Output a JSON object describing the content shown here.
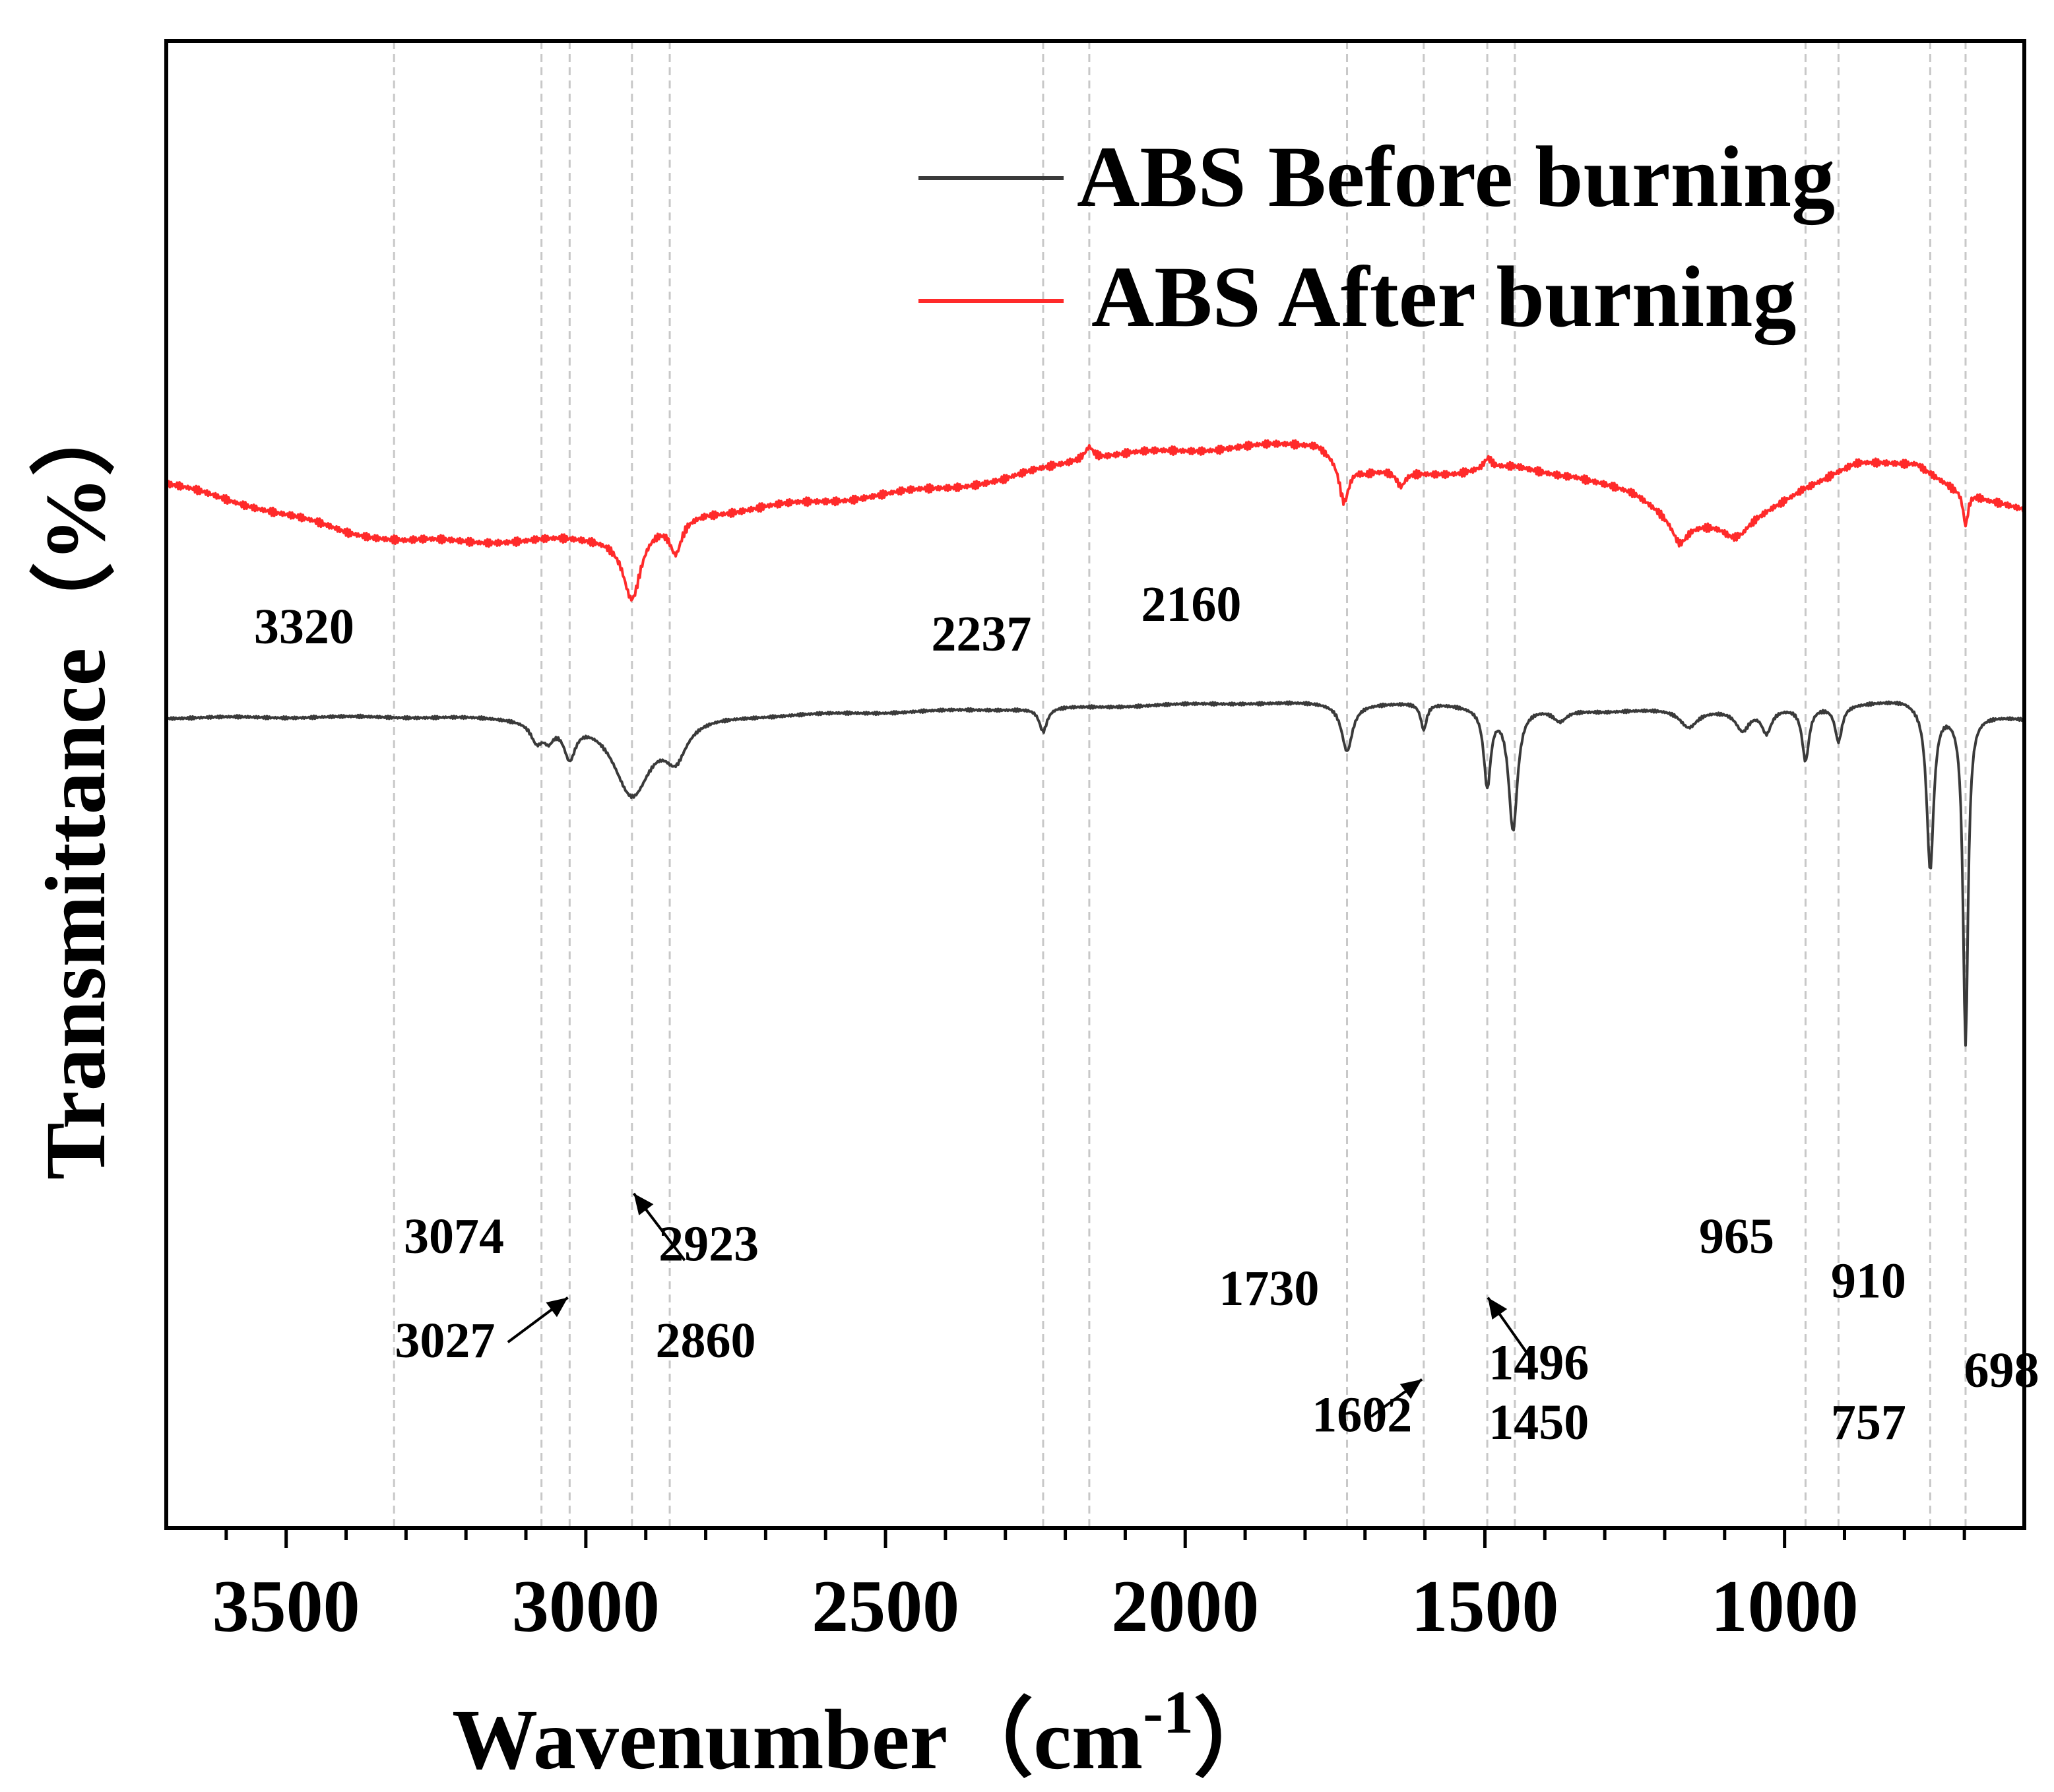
{
  "chart_data": {
    "type": "line",
    "xlabel": "Wavenumber（cm",
    "xlabel_sup": "-1",
    "xlabel_close": "）",
    "ylabel": "Transmittance（%）",
    "xlim": [
      3700,
      600
    ],
    "x_reversed": true,
    "xticks": [
      3500,
      3000,
      2500,
      2000,
      1500,
      1000
    ],
    "xtick_labels": [
      "3500",
      "3000",
      "2500",
      "2000",
      "1500",
      "1000"
    ],
    "y_ticks_shown": false,
    "ylim": [
      0,
      100
    ],
    "legend_position": "top-right",
    "colors": {
      "before": "#3a3a3a",
      "after": "#ff2a2a",
      "reference_lines": "#c8c8c8"
    },
    "reference_lines": [
      3320,
      3074,
      3027,
      2923,
      2860,
      2237,
      2160,
      1730,
      1602,
      1496,
      1450,
      965,
      910,
      757,
      698
    ],
    "series": [
      {
        "name": "ABS Before burning",
        "color": "#3a3a3a",
        "baseline": [
          [
            3700,
            54.5
          ],
          [
            3300,
            54.6
          ],
          [
            3100,
            54.6
          ],
          [
            2800,
            54.7
          ],
          [
            2500,
            54.9
          ],
          [
            2200,
            55.2
          ],
          [
            1900,
            55.5
          ],
          [
            1600,
            55.5
          ],
          [
            1300,
            55.0
          ],
          [
            1000,
            55.2
          ],
          [
            800,
            55.7
          ],
          [
            700,
            54.9
          ],
          [
            600,
            54.4
          ]
        ],
        "peaks": [
          {
            "x": 3082,
            "depth": 1.3,
            "width": 12
          },
          {
            "x": 3062,
            "depth": 1.0,
            "width": 10
          },
          {
            "x": 3027,
            "depth": 2.3,
            "width": 12
          },
          {
            "x": 2923,
            "depth": 5.2,
            "width": 38
          },
          {
            "x": 2850,
            "depth": 2.3,
            "width": 22
          },
          {
            "x": 2237,
            "depth": 1.6,
            "width": 8
          },
          {
            "x": 1730,
            "depth": 3.2,
            "width": 11
          },
          {
            "x": 1602,
            "depth": 1.8,
            "width": 6
          },
          {
            "x": 1496,
            "depth": 5.2,
            "width": 7
          },
          {
            "x": 1453,
            "depth": 8.2,
            "width": 9
          },
          {
            "x": 1375,
            "depth": 0.8,
            "width": 14
          },
          {
            "x": 1160,
            "depth": 1.2,
            "width": 18
          },
          {
            "x": 1070,
            "depth": 1.4,
            "width": 14
          },
          {
            "x": 1030,
            "depth": 1.6,
            "width": 10
          },
          {
            "x": 965,
            "depth": 3.6,
            "width": 7
          },
          {
            "x": 910,
            "depth": 2.4,
            "width": 7
          },
          {
            "x": 757,
            "depth": 11.0,
            "width": 7
          },
          {
            "x": 698,
            "depth": 22.3,
            "width": 5
          }
        ]
      },
      {
        "name": "ABS After burning",
        "color": "#ff2a2a",
        "baseline": [
          [
            3700,
            70.2
          ],
          [
            3550,
            68.7
          ],
          [
            3400,
            67.0
          ],
          [
            3300,
            66.4
          ],
          [
            3100,
            66.4
          ],
          [
            2950,
            66.8
          ],
          [
            2800,
            68.3
          ],
          [
            2500,
            69.5
          ],
          [
            2300,
            70.5
          ],
          [
            2170,
            72.0
          ],
          [
            2000,
            72.5
          ],
          [
            1900,
            72.7
          ],
          [
            1780,
            73.0
          ],
          [
            1700,
            71.0
          ],
          [
            1550,
            71.0
          ],
          [
            1450,
            71.3
          ],
          [
            1350,
            70.8
          ],
          [
            1250,
            69.5
          ],
          [
            1175,
            67.8
          ],
          [
            1070,
            67.4
          ],
          [
            970,
            70.0
          ],
          [
            880,
            71.5
          ],
          [
            780,
            71.7
          ],
          [
            720,
            70.0
          ],
          [
            660,
            69.0
          ],
          [
            600,
            68.6
          ]
        ],
        "peaks": [
          {
            "x": 2923,
            "depth": 4.5,
            "width": 18
          },
          {
            "x": 2850,
            "depth": 2.2,
            "width": 12
          },
          {
            "x": 2160,
            "depth": -0.8,
            "width": 8
          },
          {
            "x": 1735,
            "depth": 2.8,
            "width": 10
          },
          {
            "x": 1640,
            "depth": 1.0,
            "width": 9
          },
          {
            "x": 1495,
            "depth": -0.7,
            "width": 8
          },
          {
            "x": 1175,
            "depth": 1.4,
            "width": 16
          },
          {
            "x": 1085,
            "depth": 0.9,
            "width": 22
          },
          {
            "x": 698,
            "depth": 2.3,
            "width": 5
          }
        ]
      }
    ],
    "annotations": [
      {
        "text": "3320",
        "x": 3470,
        "y": 59.5
      },
      {
        "text": "2237",
        "x": 2340,
        "y": 59.0
      },
      {
        "text": "2160",
        "x": 1990,
        "y": 61.0
      },
      {
        "text": "3074",
        "x": 3220,
        "y": 18.5
      },
      {
        "text": "3027",
        "x": 3235,
        "y": 11.5
      },
      {
        "text": "2923",
        "x": 2795,
        "y": 18.0
      },
      {
        "text": "2860",
        "x": 2800,
        "y": 11.5
      },
      {
        "text": "1730",
        "x": 1860,
        "y": 15.0
      },
      {
        "text": "1602",
        "x": 1705,
        "y": 6.5
      },
      {
        "text": "1496",
        "x": 1410,
        "y": 10.0
      },
      {
        "text": "1450",
        "x": 1410,
        "y": 6.0
      },
      {
        "text": "965",
        "x": 1080,
        "y": 18.5
      },
      {
        "text": "910",
        "x": 860,
        "y": 15.5
      },
      {
        "text": "757",
        "x": 860,
        "y": 6.0
      },
      {
        "text": "698",
        "x": 638,
        "y": 9.5
      }
    ],
    "arrows": [
      {
        "from": [
          3130,
          12.5
        ],
        "to": [
          3030,
          15.5
        ]
      },
      {
        "from": [
          2835,
          18.0
        ],
        "to": [
          2920,
          22.5
        ]
      },
      {
        "from": [
          1690,
          7.5
        ],
        "to": [
          1605,
          10.0
        ]
      },
      {
        "from": [
          1425,
          11.5
        ],
        "to": [
          1495,
          15.5
        ]
      }
    ]
  }
}
